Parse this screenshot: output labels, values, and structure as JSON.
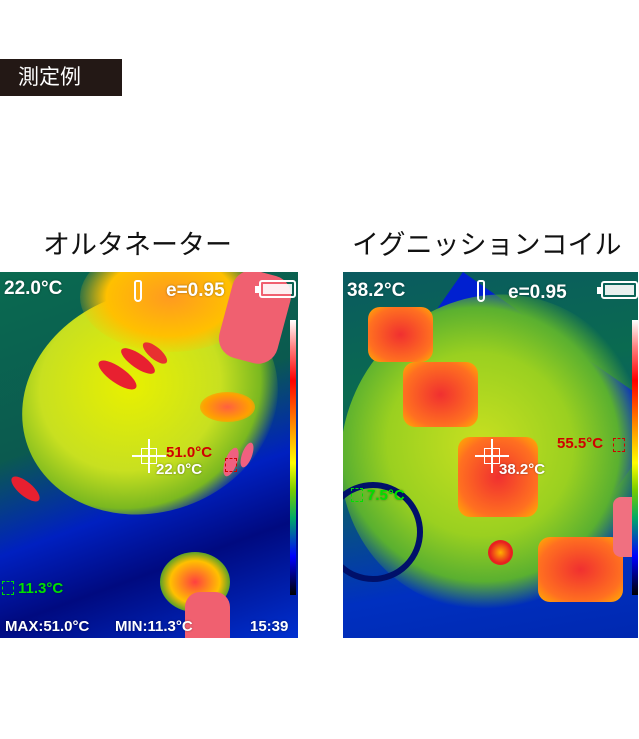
{
  "badge": {
    "label": "測定例"
  },
  "examples": [
    {
      "caption": "オルタネーター",
      "center_temp": "22.0°C",
      "emissivity": "e=0.95",
      "max_marker": "51.0°C",
      "cursor_temp": "22.0°C",
      "min_marker": "11.3°C",
      "max_label": "MAX:51.0°C",
      "min_label": "MIN:11.3°C",
      "time": "15:39"
    },
    {
      "caption": "イグニッションコイル",
      "center_temp": "38.2°C",
      "emissivity": "e=0.95",
      "max_marker": "55.5°C",
      "cursor_temp": "38.2°C",
      "min_marker": "7.5°C"
    }
  ],
  "colors": {
    "max_marker": "#e00000",
    "min_marker": "#00e000",
    "hud_text": "#ffffff"
  },
  "icons": [
    "thermometer-icon",
    "battery-icon",
    "crosshair-icon"
  ]
}
